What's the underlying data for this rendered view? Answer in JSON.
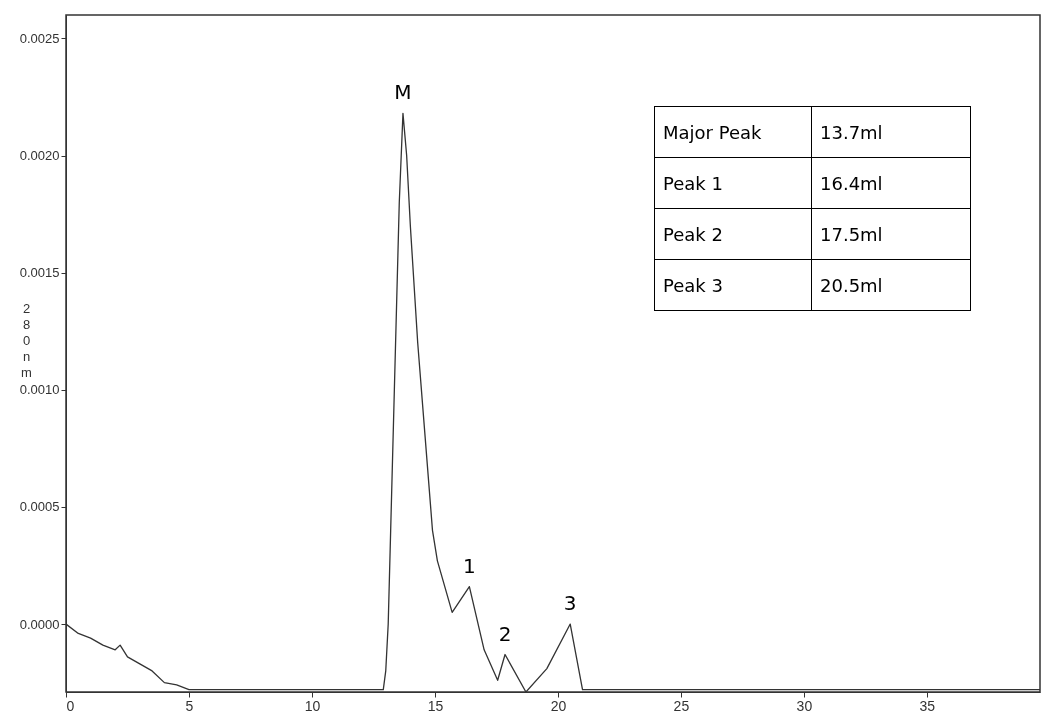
{
  "chart_data": {
    "type": "line",
    "ylabel": "280nm",
    "x": [
      0,
      0.5,
      1,
      1.5,
      2,
      2.2,
      2.5,
      3,
      3.5,
      4,
      4.5,
      5,
      12.9,
      13.0,
      13.1,
      13.2,
      13.35,
      13.45,
      13.55,
      13.7,
      13.85,
      14.0,
      14.3,
      14.6,
      14.9,
      15.1,
      15.7,
      16.4,
      17.0,
      17.55,
      17.85,
      18.7,
      19.55,
      20.5,
      21.0,
      39.6
    ],
    "series": [
      {
        "color": "#333333",
        "values": [
          0.0,
          -4e-05,
          -6e-05,
          -9e-05,
          -0.00011,
          -9e-05,
          -0.00014,
          -0.00017,
          -0.0002,
          -0.00025,
          -0.00026,
          -0.00028,
          -0.00028,
          -0.0002,
          0.0,
          0.0004,
          0.001,
          0.0014,
          0.0018,
          0.00218,
          0.002,
          0.0017,
          0.0012,
          0.0008,
          0.0004,
          0.00027,
          5e-05,
          0.00016,
          -0.00011,
          -0.00024,
          -0.00013,
          -0.00029,
          -0.00019,
          0.0,
          -0.00028,
          -0.00028
        ]
      }
    ],
    "xlim": [
      0,
      39.6
    ],
    "xticks": [
      0,
      5,
      10,
      15,
      20,
      25,
      30,
      35
    ],
    "ylim": [
      -0.00029,
      0.0026
    ],
    "yticks": [
      {
        "value": 0,
        "label": "0.0000"
      },
      {
        "value": 0.0005,
        "label": "0.0005"
      },
      {
        "value": 0.001,
        "label": "0.0010"
      },
      {
        "value": 0.0015,
        "label": "0.0015"
      },
      {
        "value": 0.002,
        "label": "0.0020"
      },
      {
        "value": 0.0025,
        "label": "0.0025"
      }
    ],
    "marker": "none",
    "line_style": "solid",
    "annotations": [
      {
        "text": "M",
        "x": 13.7,
        "y": 0.00218
      },
      {
        "text": "1",
        "x": 16.4,
        "y": 0.00016
      },
      {
        "text": "2",
        "x": 17.85,
        "y": -0.00013
      },
      {
        "text": "3",
        "x": 20.5,
        "y": 0.0
      },
      "Major Peak",
      "13.7ml",
      "Peak 1",
      "16.4ml",
      "Peak 2",
      "17.5ml",
      "Peak 3",
      "20.5ml"
    ]
  }
}
